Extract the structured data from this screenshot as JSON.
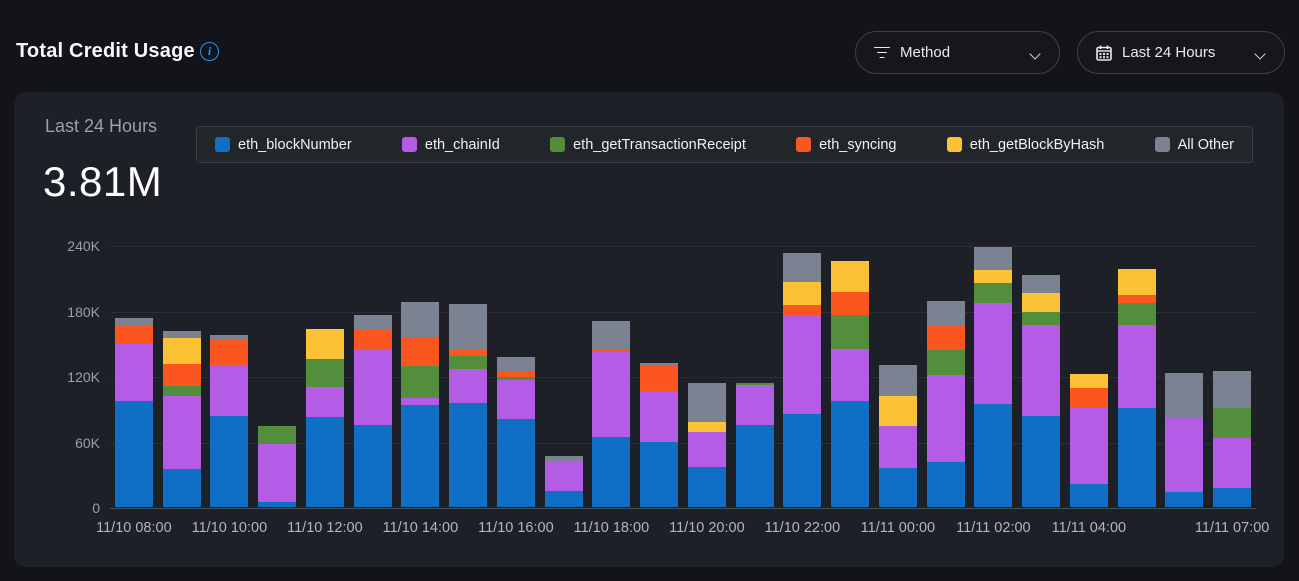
{
  "header": {
    "title": "Total Credit Usage",
    "method_filter_label": "Method",
    "time_range_label": "Last 24 Hours"
  },
  "card": {
    "subtitle": "Last 24 Hours",
    "total_value": "3.81M"
  },
  "colors": {
    "page_bg": "#131419",
    "card_bg": "#1d2026",
    "accent_info": "#2096f3",
    "gridline": "#2b2e34",
    "axis_line": "#4a4e55"
  },
  "chart_data": {
    "type": "bar",
    "variant": "stacked",
    "title": "Total Credit Usage",
    "subtitle": "Last 24 Hours",
    "total_label": "3.81M",
    "values_unit": "K (thousands of credits)",
    "ylim": [
      0,
      240
    ],
    "grid": true,
    "legend_position": "top",
    "yticks": [
      {
        "label": "0",
        "value": 0
      },
      {
        "label": "60K",
        "value": 60
      },
      {
        "label": "120K",
        "value": 120
      },
      {
        "label": "180K",
        "value": 180
      },
      {
        "label": "240K",
        "value": 240
      }
    ],
    "x_labels": [
      "11/10 08:00",
      "",
      "11/10 10:00",
      "",
      "11/10 12:00",
      "",
      "11/10 14:00",
      "",
      "11/10 16:00",
      "",
      "11/10 18:00",
      "",
      "11/10 20:00",
      "",
      "11/10 22:00",
      "",
      "11/11 00:00",
      "",
      "11/11 02:00",
      "",
      "11/11 04:00",
      "",
      "",
      "11/11 07:00"
    ],
    "series": [
      {
        "name": "eth_blockNumber",
        "color": "#0e6fc5",
        "values": [
          97,
          35,
          83,
          5,
          82,
          75,
          93,
          95,
          81,
          15,
          64,
          60,
          37,
          75,
          85,
          97,
          36,
          41,
          94,
          83,
          21,
          91,
          14,
          17
        ]
      },
      {
        "name": "eth_chainId",
        "color": "#b55ce6",
        "values": [
          52,
          67,
          47,
          53,
          28,
          69,
          7,
          31,
          35,
          27,
          78,
          46,
          32,
          37,
          90,
          48,
          38,
          80,
          93,
          84,
          70,
          76,
          68,
          46
        ]
      },
      {
        "name": "eth_getTransactionReceipt",
        "color": "#528e3c",
        "values": [
          0,
          9,
          0,
          16,
          26,
          0,
          29,
          12,
          3,
          0,
          0,
          0,
          0,
          2,
          0,
          31,
          0,
          23,
          18,
          12,
          0,
          20,
          0,
          28
        ]
      },
      {
        "name": "eth_syncing",
        "color": "#fc5620",
        "values": [
          18,
          20,
          24,
          0,
          0,
          18,
          27,
          6,
          6,
          0,
          2,
          24,
          0,
          0,
          10,
          21,
          0,
          22,
          0,
          0,
          18,
          7,
          0,
          0
        ]
      },
      {
        "name": "eth_getBlockByHash",
        "color": "#fcc235",
        "values": [
          0,
          24,
          0,
          0,
          27,
          0,
          0,
          0,
          0,
          0,
          0,
          0,
          9,
          0,
          21,
          28,
          28,
          0,
          12,
          17,
          13,
          24,
          0,
          0
        ]
      },
      {
        "name": "All Other",
        "color": "#7b8392",
        "values": [
          6,
          6,
          4,
          0,
          0,
          14,
          32,
          42,
          12,
          5,
          26,
          2,
          36,
          0,
          27,
          0,
          28,
          23,
          21,
          17,
          0,
          0,
          41,
          34
        ]
      }
    ]
  }
}
